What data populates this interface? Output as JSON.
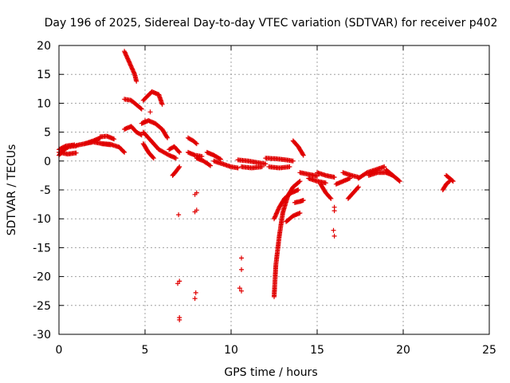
{
  "chart_data": {
    "type": "scatter",
    "title": "Day 196 of 2025, Sidereal Day-to-day VTEC variation (SDTVAR) for receiver p402",
    "xlabel": "GPS time / hours",
    "ylabel": "SDTVAR / TECUs",
    "xlim": [
      0,
      25
    ],
    "ylim": [
      -30,
      20
    ],
    "xticks": [
      0,
      5,
      10,
      15,
      20,
      25
    ],
    "yticks": [
      -30,
      -25,
      -20,
      -15,
      -10,
      -5,
      0,
      5,
      10,
      15,
      20
    ],
    "grid": true,
    "marker": "+",
    "color": "#e00000",
    "segments": [
      {
        "x": [
          0.0,
          0.3,
          0.6,
          1.0
        ],
        "y": [
          1.0,
          2.0,
          2.5,
          2.6
        ]
      },
      {
        "x": [
          0.0,
          0.4,
          0.9
        ],
        "y": [
          2.0,
          2.6,
          2.8
        ]
      },
      {
        "x": [
          0.0,
          0.5,
          1.0
        ],
        "y": [
          1.5,
          1.2,
          1.4
        ]
      },
      {
        "x": [
          1.0,
          1.5,
          2.0,
          2.4
        ],
        "y": [
          2.7,
          3.0,
          3.5,
          4.0
        ]
      },
      {
        "x": [
          1.5,
          2.0,
          2.5,
          3.0
        ],
        "y": [
          3.0,
          3.3,
          3.0,
          2.8
        ]
      },
      {
        "x": [
          2.4,
          2.8,
          3.2
        ],
        "y": [
          4.2,
          4.3,
          3.8
        ]
      },
      {
        "x": [
          2.5,
          3.0,
          3.5,
          3.8
        ],
        "y": [
          3.0,
          2.9,
          2.4,
          1.5
        ]
      },
      {
        "x": [
          3.8,
          4.1,
          4.4,
          4.5
        ],
        "y": [
          19.0,
          17.0,
          15.0,
          13.8
        ]
      },
      {
        "x": [
          3.8,
          4.2,
          4.6,
          4.8
        ],
        "y": [
          10.7,
          10.5,
          9.5,
          9.0
        ]
      },
      {
        "x": [
          4.9,
          5.4,
          5.8,
          6.0
        ],
        "y": [
          10.5,
          12.0,
          11.5,
          9.8
        ]
      },
      {
        "x": [
          3.8,
          4.2,
          4.5,
          4.8
        ],
        "y": [
          5.5,
          6.0,
          5.0,
          4.5
        ]
      },
      {
        "x": [
          4.8,
          5.2,
          5.6,
          6.0,
          6.3
        ],
        "y": [
          6.5,
          7.0,
          6.5,
          5.5,
          4.0
        ]
      },
      {
        "x": [
          4.9,
          5.2,
          5.5,
          5.8
        ],
        "y": [
          5.0,
          4.0,
          3.0,
          2.0
        ]
      },
      {
        "x": [
          4.9,
          5.2,
          5.5
        ],
        "y": [
          3.0,
          1.5,
          0.5
        ]
      },
      {
        "x": [
          5.8,
          6.1,
          6.4,
          6.8
        ],
        "y": [
          2.0,
          1.5,
          1.0,
          0.5
        ]
      },
      {
        "x": [
          6.4,
          6.7,
          7.0
        ],
        "y": [
          2.0,
          2.5,
          1.5
        ]
      },
      {
        "x": [
          6.6,
          6.8,
          7.0
        ],
        "y": [
          -2.5,
          -1.8,
          -1.0
        ]
      },
      {
        "x": [
          7.5,
          7.8,
          8.0
        ],
        "y": [
          4.0,
          3.5,
          3.0
        ]
      },
      {
        "x": [
          7.5,
          7.9,
          8.3
        ],
        "y": [
          1.5,
          1.0,
          0.8
        ]
      },
      {
        "x": [
          8.0,
          8.4,
          8.8
        ],
        "y": [
          0.5,
          0.0,
          -0.8
        ]
      },
      {
        "x": [
          8.6,
          9.0,
          9.4
        ],
        "y": [
          1.5,
          1.0,
          0.3
        ]
      },
      {
        "x": [
          9.0,
          9.5,
          10.0,
          10.4
        ],
        "y": [
          0.0,
          -0.5,
          -1.0,
          -1.2
        ]
      },
      {
        "x": [
          10.4,
          11.0,
          11.6,
          12.0
        ],
        "y": [
          0.2,
          0.0,
          -0.3,
          -0.5
        ]
      },
      {
        "x": [
          10.6,
          11.2,
          11.8
        ],
        "y": [
          -1.0,
          -1.2,
          -1.0
        ]
      },
      {
        "x": [
          12.0,
          12.6,
          13.2,
          13.6
        ],
        "y": [
          0.5,
          0.4,
          0.2,
          0.0
        ]
      },
      {
        "x": [
          12.2,
          12.8,
          13.4
        ],
        "y": [
          -1.0,
          -1.2,
          -1.0
        ]
      },
      {
        "x": [
          13.6,
          13.9,
          14.2
        ],
        "y": [
          3.5,
          2.5,
          1.0
        ]
      },
      {
        "x": [
          12.5,
          12.6,
          12.8,
          13.0,
          13.3,
          13.6,
          14.0
        ],
        "y": [
          -23.5,
          -18.0,
          -13.0,
          -9.0,
          -6.0,
          -4.5,
          -3.5
        ]
      },
      {
        "x": [
          12.5,
          12.8,
          13.1,
          13.5,
          13.9
        ],
        "y": [
          -10.0,
          -8.0,
          -6.5,
          -5.5,
          -5.0
        ]
      },
      {
        "x": [
          13.2,
          13.6,
          14.0
        ],
        "y": [
          -10.5,
          -9.5,
          -9.0
        ]
      },
      {
        "x": [
          13.7,
          14.0,
          14.2
        ],
        "y": [
          -7.2,
          -7.0,
          -6.8
        ]
      },
      {
        "x": [
          14.0,
          14.5,
          15.0
        ],
        "y": [
          -2.0,
          -2.3,
          -2.6
        ]
      },
      {
        "x": [
          14.5,
          15.0,
          15.5
        ],
        "y": [
          -3.0,
          -3.5,
          -3.8
        ]
      },
      {
        "x": [
          15.0,
          15.5,
          16.0
        ],
        "y": [
          -2.0,
          -2.5,
          -2.8
        ]
      },
      {
        "x": [
          15.2,
          15.5,
          15.8
        ],
        "y": [
          -4.0,
          -5.5,
          -6.5
        ]
      },
      {
        "x": [
          16.1,
          16.5,
          16.9
        ],
        "y": [
          -4.0,
          -3.5,
          -3.0
        ]
      },
      {
        "x": [
          16.5,
          17.0,
          17.4
        ],
        "y": [
          -2.0,
          -2.5,
          -2.8
        ]
      },
      {
        "x": [
          16.8,
          17.1,
          17.4
        ],
        "y": [
          -6.5,
          -5.5,
          -4.5
        ]
      },
      {
        "x": [
          17.4,
          17.9,
          18.4,
          18.9
        ],
        "y": [
          -3.0,
          -2.0,
          -1.5,
          -1.0
        ]
      },
      {
        "x": [
          18.0,
          18.5,
          19.0,
          19.4
        ],
        "y": [
          -2.5,
          -2.0,
          -2.0,
          -2.5
        ]
      },
      {
        "x": [
          19.0,
          19.4,
          19.8
        ],
        "y": [
          -1.5,
          -2.5,
          -3.5
        ]
      },
      {
        "x": [
          22.3,
          22.5,
          22.7
        ],
        "y": [
          -5.0,
          -4.0,
          -3.5
        ]
      },
      {
        "x": [
          22.5,
          22.7,
          22.9
        ],
        "y": [
          -2.5,
          -3.0,
          -3.5
        ]
      }
    ],
    "points": [
      {
        "x": [
          5.0,
          5.3
        ],
        "y": [
          7.0,
          8.5
        ]
      },
      {
        "x": [
          6.9,
          7.0,
          7.0,
          7.0,
          6.95
        ],
        "y": [
          -21.2,
          -20.8,
          -27.1,
          -27.5,
          -9.3
        ]
      },
      {
        "x": [
          7.9,
          8.0,
          7.9,
          8.0,
          7.9,
          7.95
        ],
        "y": [
          -5.8,
          -5.5,
          -8.8,
          -8.5,
          -23.8,
          -22.8
        ]
      },
      {
        "x": [
          10.6,
          10.6,
          10.6,
          10.5
        ],
        "y": [
          -16.8,
          -18.8,
          -22.5,
          -22.0
        ]
      },
      {
        "x": [
          16.0,
          16.0,
          15.95,
          16.0
        ],
        "y": [
          -8.0,
          -8.6,
          -12.0,
          -13.0
        ]
      }
    ]
  }
}
